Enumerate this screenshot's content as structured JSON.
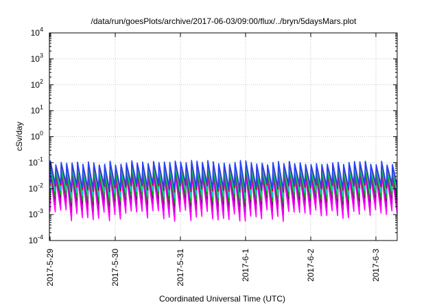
{
  "chart_data": {
    "type": "line",
    "title": "/data/run/goesPlots/archive/2017-06-03/09:00/flux/../bryn/5daysMars.plot",
    "xlabel": "Coordinated Universal Time (UTC)",
    "ylabel": "cSv/day",
    "x_start": "2017-05-29 00:00",
    "x_end": "2017-06-03 09:00",
    "x_ticks": [
      "2017-5-29",
      "2017-5-30",
      "2017-5-31",
      "2017-6-1",
      "2017-6-2",
      "2017-6-3"
    ],
    "y_scale": "log",
    "ylim": [
      0.0001,
      10000
    ],
    "y_ticks": [
      {
        "base": "10",
        "exp": "-4"
      },
      {
        "base": "10",
        "exp": "-3"
      },
      {
        "base": "10",
        "exp": "-2"
      },
      {
        "base": "10",
        "exp": "-1"
      },
      {
        "base": "10",
        "exp": "0"
      },
      {
        "base": "10",
        "exp": "1"
      },
      {
        "base": "10",
        "exp": "2"
      },
      {
        "base": "10",
        "exp": "3"
      },
      {
        "base": "10",
        "exp": "4"
      }
    ],
    "grid": true,
    "series_pattern": "sawtooth",
    "teeth_per_day": 12,
    "series": [
      {
        "color": "#ff00ff",
        "peak": 0.03,
        "trough": 0.0009
      },
      {
        "color": "#cc00cc",
        "peak": 0.04,
        "trough": 0.0018
      },
      {
        "color": "#880088",
        "peak": 0.05,
        "trough": 0.003
      },
      {
        "color": "#00aa00",
        "peak": 0.05,
        "trough": 0.004
      },
      {
        "color": "#00cccc",
        "peak": 0.07,
        "trough": 0.006
      },
      {
        "color": "#cc0000",
        "peak": 0.09,
        "trough": 0.01
      },
      {
        "color": "#2244ff",
        "peak": 0.1,
        "trough": 0.012
      }
    ]
  }
}
